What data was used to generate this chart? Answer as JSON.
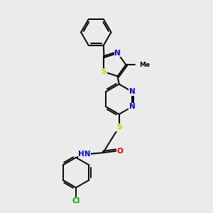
{
  "background_color": "#ebebeb",
  "bond_color": "#000000",
  "atom_colors": {
    "S": "#cccc00",
    "N": "#0000ee",
    "O": "#ff0000",
    "Cl": "#00aa00",
    "C": "#000000",
    "Me": "#000000"
  },
  "font_size": 7.5
}
